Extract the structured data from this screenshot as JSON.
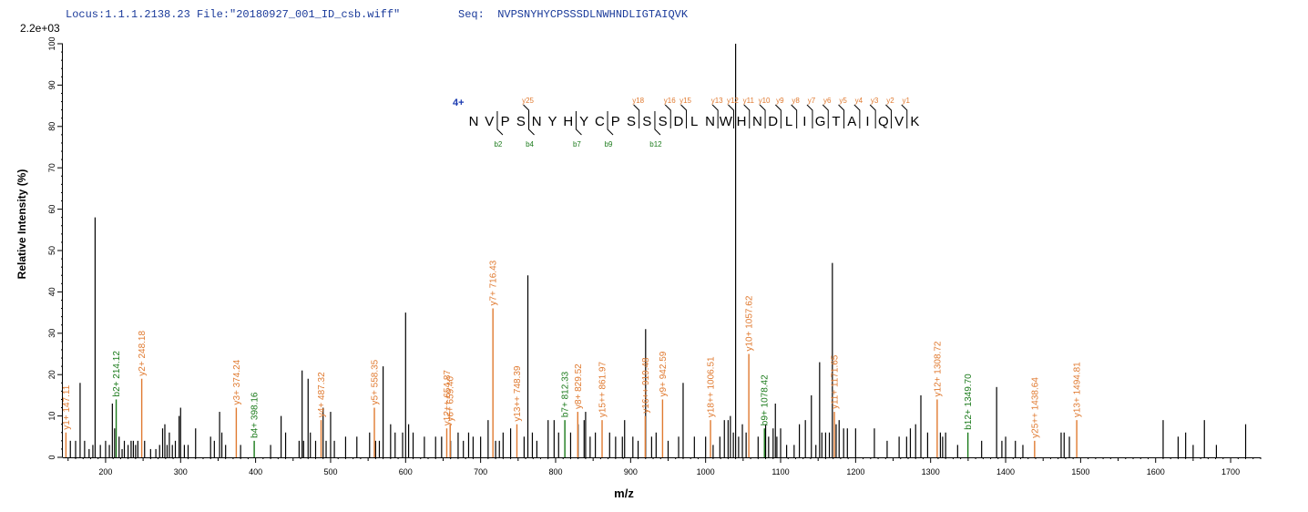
{
  "header": {
    "locus_label": "Locus:1.1.1.2138.23 File:\"20180927_001_ID_csb.wiff\"",
    "seq_label": "Seq:  NVPSNYHYCPSSSDLNWHNDLIGTAIQVK",
    "ymax_label": "2.2e+03"
  },
  "colors": {
    "peak": "#000000",
    "b_ion": "#1a7a1a",
    "y_ion": "#e07a30",
    "charge": "#1a3ab0",
    "axis": "#000000"
  },
  "charge_label": "4+",
  "sequence": [
    "N",
    "V",
    "P",
    "S",
    "N",
    "Y",
    "H",
    "Y",
    "C",
    "P",
    "S",
    "S",
    "S",
    "D",
    "L",
    "N",
    "W",
    "H",
    "N",
    "D",
    "L",
    "I",
    "G",
    "T",
    "A",
    "I",
    "Q",
    "V",
    "K"
  ],
  "y_fragments": [
    {
      "label": "y25",
      "after": 4
    },
    {
      "label": "y18",
      "after": 11
    },
    {
      "label": "y16",
      "after": 13
    },
    {
      "label": "y15",
      "after": 14
    },
    {
      "label": "y13",
      "after": 16
    },
    {
      "label": "y12",
      "after": 17
    },
    {
      "label": "y11",
      "after": 18
    },
    {
      "label": "y10",
      "after": 19
    },
    {
      "label": "y9",
      "after": 20
    },
    {
      "label": "y8",
      "after": 21
    },
    {
      "label": "y7",
      "after": 22
    },
    {
      "label": "y6",
      "after": 23
    },
    {
      "label": "y5",
      "after": 24
    },
    {
      "label": "y4",
      "after": 25
    },
    {
      "label": "y3",
      "after": 26
    },
    {
      "label": "y2",
      "after": 27
    },
    {
      "label": "y1",
      "after": 28
    }
  ],
  "b_fragments": [
    {
      "label": "b2",
      "after": 2
    },
    {
      "label": "b4",
      "after": 4
    },
    {
      "label": "b7",
      "after": 7
    },
    {
      "label": "b9",
      "after": 9
    },
    {
      "label": "b12",
      "after": 12
    }
  ],
  "chart_data": {
    "type": "bar",
    "xlabel": "m/z",
    "ylabel": "Relative  Intensity (%)",
    "xlim": [
      143,
      1740
    ],
    "ylim": [
      0,
      100
    ],
    "x_ticks": [
      200,
      300,
      400,
      500,
      600,
      700,
      800,
      900,
      1000,
      1100,
      1200,
      1300,
      1400,
      1500,
      1600,
      1700
    ],
    "y_ticks": [
      0,
      10,
      20,
      30,
      40,
      50,
      60,
      70,
      80,
      90,
      100
    ],
    "annotated_peaks": [
      {
        "mz": 147.11,
        "intensity": 6,
        "label": "y1+ 147.11",
        "ion": "y"
      },
      {
        "mz": 214.12,
        "intensity": 14,
        "label": "b2+ 214.12",
        "ion": "b"
      },
      {
        "mz": 248.18,
        "intensity": 19,
        "label": "y2+ 248.18",
        "ion": "y"
      },
      {
        "mz": 374.24,
        "intensity": 12,
        "label": "y3+ 374.24",
        "ion": "y"
      },
      {
        "mz": 398.16,
        "intensity": 4,
        "label": "b4+ 398.16",
        "ion": "b"
      },
      {
        "mz": 487.32,
        "intensity": 9,
        "label": "y4+ 487.32",
        "ion": "y"
      },
      {
        "mz": 558.35,
        "intensity": 12,
        "label": "y5+ 558.35",
        "ion": "y"
      },
      {
        "mz": 654.87,
        "intensity": 7,
        "label": "y12++ 654.87",
        "ion": "y"
      },
      {
        "mz": 659.4,
        "intensity": 8,
        "label": "y6+ 659.40",
        "ion": "y"
      },
      {
        "mz": 716.43,
        "intensity": 36,
        "label": "y7+ 716.43",
        "ion": "y"
      },
      {
        "mz": 748.39,
        "intensity": 8,
        "label": "y13++ 748.39",
        "ion": "y"
      },
      {
        "mz": 812.33,
        "intensity": 9,
        "label": "b7+ 812.33",
        "ion": "b"
      },
      {
        "mz": 829.52,
        "intensity": 11,
        "label": "y8+ 829.52",
        "ion": "y"
      },
      {
        "mz": 861.97,
        "intensity": 9,
        "label": "y15++ 861.97",
        "ion": "y"
      },
      {
        "mz": 919.48,
        "intensity": 10,
        "label": "y16++ 919.48",
        "ion": "y"
      },
      {
        "mz": 942.59,
        "intensity": 14,
        "label": "y9+ 942.59",
        "ion": "y"
      },
      {
        "mz": 1006.51,
        "intensity": 9,
        "label": "y18++ 1006.51",
        "ion": "y"
      },
      {
        "mz": 1057.62,
        "intensity": 25,
        "label": "y10+ 1057.62",
        "ion": "y"
      },
      {
        "mz": 1078.42,
        "intensity": 7,
        "label": "b9+ 1078.42",
        "ion": "b"
      },
      {
        "mz": 1171.65,
        "intensity": 11,
        "label": "y11+ 1171.65",
        "ion": "y"
      },
      {
        "mz": 1308.72,
        "intensity": 14,
        "label": "y12+ 1308.72",
        "ion": "y"
      },
      {
        "mz": 1349.7,
        "intensity": 6,
        "label": "b12+ 1349.70",
        "ion": "b"
      },
      {
        "mz": 1438.64,
        "intensity": 4,
        "label": "y25++ 1438.64",
        "ion": "y"
      },
      {
        "mz": 1494.81,
        "intensity": 9,
        "label": "y13+ 1494.81",
        "ion": "y"
      }
    ],
    "other_peaks": [
      [
        153,
        4
      ],
      [
        160,
        4
      ],
      [
        166,
        18
      ],
      [
        172,
        4
      ],
      [
        178,
        2
      ],
      [
        183,
        3
      ],
      [
        186,
        58
      ],
      [
        193,
        3
      ],
      [
        200,
        4
      ],
      [
        205,
        3
      ],
      [
        209,
        13
      ],
      [
        212,
        7
      ],
      [
        218,
        5
      ],
      [
        222,
        2
      ],
      [
        225,
        4
      ],
      [
        230,
        3
      ],
      [
        234,
        4
      ],
      [
        237,
        4
      ],
      [
        240,
        3
      ],
      [
        243,
        4
      ],
      [
        252,
        4
      ],
      [
        260,
        2
      ],
      [
        267,
        2
      ],
      [
        272,
        3
      ],
      [
        276,
        7
      ],
      [
        279,
        8
      ],
      [
        282,
        3
      ],
      [
        285,
        6
      ],
      [
        289,
        3
      ],
      [
        293,
        4
      ],
      [
        298,
        10
      ],
      [
        300,
        12
      ],
      [
        305,
        3
      ],
      [
        310,
        3
      ],
      [
        320,
        7
      ],
      [
        340,
        5
      ],
      [
        345,
        4
      ],
      [
        352,
        11
      ],
      [
        355,
        6
      ],
      [
        360,
        3
      ],
      [
        380,
        3
      ],
      [
        420,
        3
      ],
      [
        434,
        10
      ],
      [
        440,
        6
      ],
      [
        458,
        4
      ],
      [
        462,
        21
      ],
      [
        464,
        4
      ],
      [
        470,
        19
      ],
      [
        473,
        6
      ],
      [
        480,
        4
      ],
      [
        490,
        12
      ],
      [
        494,
        4
      ],
      [
        500,
        11
      ],
      [
        505,
        4
      ],
      [
        520,
        5
      ],
      [
        535,
        5
      ],
      [
        552,
        6
      ],
      [
        560,
        4
      ],
      [
        565,
        4
      ],
      [
        570,
        22
      ],
      [
        580,
        8
      ],
      [
        586,
        6
      ],
      [
        596,
        6
      ],
      [
        600,
        35
      ],
      [
        604,
        8
      ],
      [
        610,
        6
      ],
      [
        625,
        5
      ],
      [
        640,
        5
      ],
      [
        648,
        5
      ],
      [
        660,
        4
      ],
      [
        670,
        6
      ],
      [
        677,
        4
      ],
      [
        684,
        6
      ],
      [
        690,
        5
      ],
      [
        700,
        5
      ],
      [
        710,
        9
      ],
      [
        720,
        4
      ],
      [
        725,
        4
      ],
      [
        730,
        6
      ],
      [
        740,
        7
      ],
      [
        758,
        5
      ],
      [
        763,
        44
      ],
      [
        769,
        6
      ],
      [
        775,
        4
      ],
      [
        790,
        9
      ],
      [
        798,
        9
      ],
      [
        804,
        6
      ],
      [
        820,
        6
      ],
      [
        830,
        8
      ],
      [
        838,
        9
      ],
      [
        840,
        11
      ],
      [
        846,
        5
      ],
      [
        853,
        6
      ],
      [
        872,
        6
      ],
      [
        880,
        5
      ],
      [
        889,
        5
      ],
      [
        892,
        9
      ],
      [
        903,
        5
      ],
      [
        910,
        4
      ],
      [
        920,
        31
      ],
      [
        928,
        5
      ],
      [
        934,
        6
      ],
      [
        950,
        4
      ],
      [
        964,
        5
      ],
      [
        970,
        18
      ],
      [
        985,
        5
      ],
      [
        1000,
        5
      ],
      [
        1010,
        3
      ],
      [
        1019,
        5
      ],
      [
        1025,
        9
      ],
      [
        1030,
        9
      ],
      [
        1033,
        10
      ],
      [
        1037,
        6
      ],
      [
        1040,
        100
      ],
      [
        1044,
        5
      ],
      [
        1049,
        8
      ],
      [
        1054,
        6
      ],
      [
        1070,
        5
      ],
      [
        1080,
        8
      ],
      [
        1084,
        5
      ],
      [
        1090,
        7
      ],
      [
        1093,
        13
      ],
      [
        1095,
        5
      ],
      [
        1100,
        7
      ],
      [
        1108,
        3
      ],
      [
        1118,
        3
      ],
      [
        1125,
        8
      ],
      [
        1133,
        9
      ],
      [
        1141,
        15
      ],
      [
        1147,
        3
      ],
      [
        1152,
        23
      ],
      [
        1155,
        6
      ],
      [
        1160,
        6
      ],
      [
        1165,
        6
      ],
      [
        1169,
        47
      ],
      [
        1174,
        8
      ],
      [
        1178,
        9
      ],
      [
        1184,
        7
      ],
      [
        1189,
        7
      ],
      [
        1200,
        7
      ],
      [
        1225,
        7
      ],
      [
        1242,
        4
      ],
      [
        1258,
        5
      ],
      [
        1268,
        5
      ],
      [
        1273,
        7
      ],
      [
        1280,
        8
      ],
      [
        1287,
        15
      ],
      [
        1296,
        6
      ],
      [
        1313,
        6
      ],
      [
        1316,
        5
      ],
      [
        1320,
        6
      ],
      [
        1336,
        3
      ],
      [
        1368,
        4
      ],
      [
        1388,
        17
      ],
      [
        1395,
        4
      ],
      [
        1400,
        5
      ],
      [
        1413,
        4
      ],
      [
        1423,
        3
      ],
      [
        1474,
        6
      ],
      [
        1478,
        6
      ],
      [
        1485,
        5
      ],
      [
        1610,
        9
      ],
      [
        1630,
        5
      ],
      [
        1640,
        6
      ],
      [
        1650,
        3
      ],
      [
        1665,
        9
      ],
      [
        1681,
        3
      ],
      [
        1720,
        8
      ]
    ]
  }
}
